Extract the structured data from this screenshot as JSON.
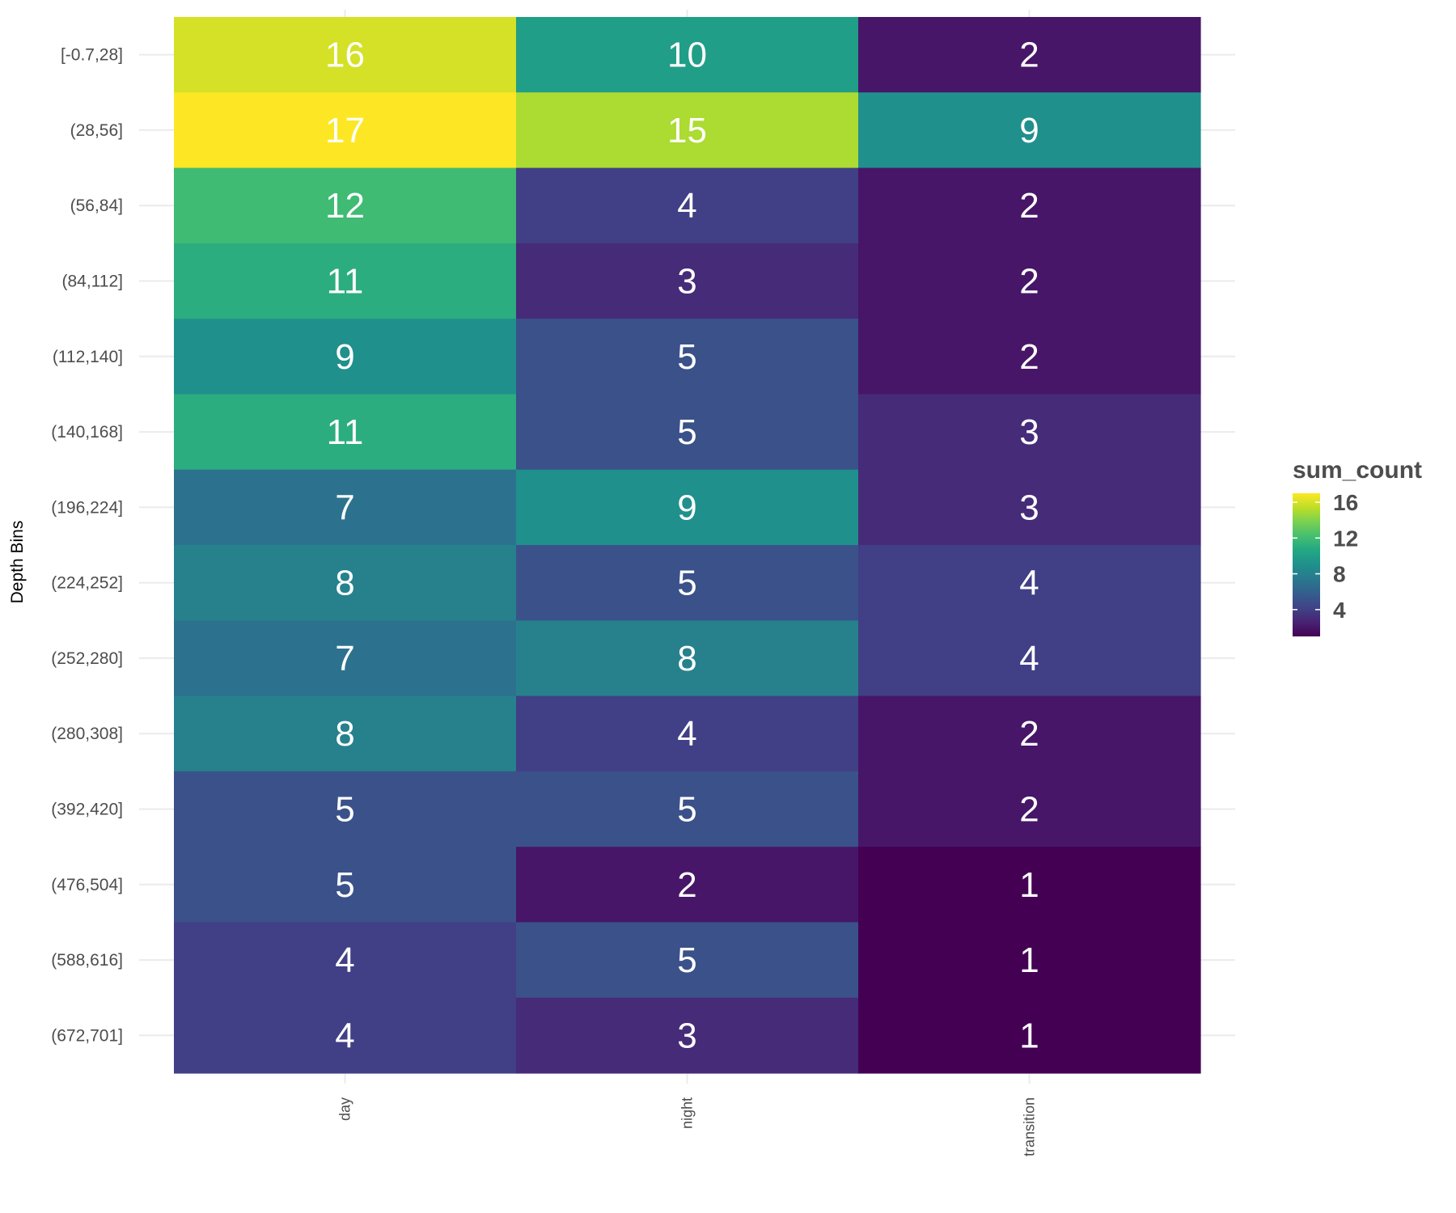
{
  "chart_data": {
    "type": "heatmap",
    "title": "",
    "xlabel": "",
    "ylabel": "Depth Bins",
    "x_categories": [
      "day",
      "night",
      "transition"
    ],
    "y_categories": [
      "[-0.7,28]",
      "(28,56]",
      "(56,84]",
      "(84,112]",
      "(112,140]",
      "(140,168]",
      "(196,224]",
      "(224,252]",
      "(252,280]",
      "(280,308]",
      "(392,420]",
      "(476,504]",
      "(588,616]",
      "(672,701]"
    ],
    "values": [
      [
        16,
        10,
        2
      ],
      [
        17,
        15,
        9
      ],
      [
        12,
        4,
        2
      ],
      [
        11,
        3,
        2
      ],
      [
        9,
        5,
        2
      ],
      [
        11,
        5,
        3
      ],
      [
        7,
        9,
        3
      ],
      [
        8,
        5,
        4
      ],
      [
        7,
        8,
        4
      ],
      [
        8,
        4,
        2
      ],
      [
        5,
        5,
        2
      ],
      [
        5,
        2,
        1
      ],
      [
        4,
        5,
        1
      ],
      [
        4,
        3,
        1
      ]
    ],
    "colorscale": "viridis",
    "value_range": [
      1,
      17
    ],
    "legend": {
      "title": "sum_count",
      "ticks": [
        4,
        8,
        12,
        16
      ],
      "position": "right"
    },
    "grid": true,
    "colors": {
      "grid": "#ebebeb",
      "cell_text": "#ffffff",
      "tick_text": "#4d4d4d"
    }
  }
}
